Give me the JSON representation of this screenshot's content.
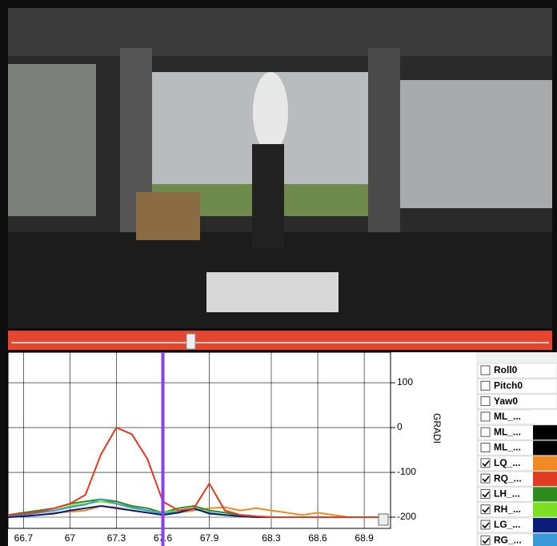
{
  "chart_data": {
    "type": "line",
    "x": [
      66.6,
      66.7,
      66.8,
      66.9,
      67.0,
      67.1,
      67.2,
      67.3,
      67.4,
      67.5,
      67.6,
      67.7,
      67.8,
      67.9,
      68.0,
      68.1,
      68.2,
      68.3,
      68.4,
      68.5,
      68.6,
      68.7,
      68.8,
      68.9,
      69.0
    ],
    "series": [
      {
        "color": "#f08a24",
        "values": [
          -200,
          -198,
          -195,
          -190,
          -188,
          -185,
          -175,
          -178,
          -185,
          -190,
          -195,
          -190,
          -185,
          -180,
          -178,
          -185,
          -180,
          -185,
          -190,
          -195,
          -190,
          -195,
          -200,
          -200,
          -200
        ]
      },
      {
        "color": "#2e8b1e",
        "values": [
          -195,
          -190,
          -185,
          -180,
          -170,
          -165,
          -160,
          -165,
          -175,
          -180,
          -190,
          -180,
          -175,
          -185,
          -190,
          -195,
          -198,
          -200,
          -200,
          -200,
          -200,
          -200,
          -200,
          -200,
          -200
        ]
      },
      {
        "color": "#7be021",
        "values": [
          -200,
          -195,
          -190,
          -185,
          -175,
          -170,
          -165,
          -170,
          -180,
          -185,
          -190,
          -185,
          -180,
          -190,
          -195,
          -198,
          -200,
          -200,
          -200,
          -200,
          -200,
          -200,
          -200,
          -200,
          -200
        ]
      },
      {
        "color": "#3a9ad9",
        "values": [
          -198,
          -195,
          -190,
          -185,
          -178,
          -172,
          -160,
          -170,
          -178,
          -185,
          -192,
          -188,
          -182,
          -190,
          -195,
          -198,
          -200,
          -200,
          -200,
          -200,
          -200,
          -200,
          -200,
          -200,
          -200
        ]
      },
      {
        "color": "#0b1f7a",
        "values": [
          -200,
          -198,
          -195,
          -192,
          -185,
          -180,
          -175,
          -180,
          -185,
          -190,
          -195,
          -190,
          -180,
          -192,
          -195,
          -198,
          -200,
          -200,
          -200,
          -200,
          -200,
          -200,
          -200,
          -200,
          -200
        ]
      },
      {
        "color": "#e23b1f",
        "values": [
          -195,
          -192,
          -188,
          -180,
          -170,
          -150,
          -60,
          0,
          -15,
          -70,
          -165,
          -185,
          -180,
          -125,
          -185,
          -195,
          -198,
          -200,
          -200,
          -200,
          -200,
          -200,
          -200,
          -200,
          -200
        ]
      }
    ],
    "xlim": [
      66.6,
      69.07
    ],
    "ylim": [
      -225,
      168
    ],
    "xticks": [
      66.7,
      67,
      67.3,
      67.6,
      67.9,
      68.3,
      68.6,
      68.9
    ],
    "yticks": [
      100,
      0,
      -100,
      -200
    ],
    "y_label": "GRADI",
    "grid": true,
    "cursor_x": 67.6,
    "legend_items": [
      {
        "label": "Roll0",
        "checked": false
      },
      {
        "label": "Pitch0",
        "checked": false
      },
      {
        "label": "Yaw0",
        "checked": false
      },
      {
        "label": "ML_...",
        "checked": false,
        "color": "#ffffff"
      },
      {
        "label": "ML_...",
        "checked": false,
        "color": "#000000"
      },
      {
        "label": "ML_...",
        "checked": false,
        "color": "#000000"
      },
      {
        "label": "LQ_...",
        "checked": true,
        "color": "#f08a24"
      },
      {
        "label": "RQ_...",
        "checked": true,
        "color": "#e23b1f"
      },
      {
        "label": "LH_...",
        "checked": true,
        "color": "#2e8b1e"
      },
      {
        "label": "RH_...",
        "checked": true,
        "color": "#7be021"
      },
      {
        "label": "LG_...",
        "checked": true,
        "color": "#0b1f7a"
      },
      {
        "label": "RG_...",
        "checked": true,
        "color": "#3a9ad9"
      }
    ]
  }
}
